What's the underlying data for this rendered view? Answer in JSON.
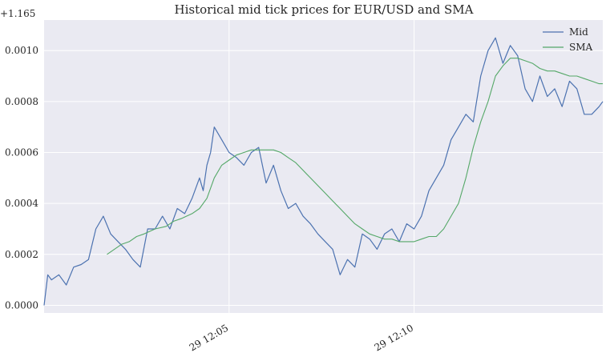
{
  "chart_data": {
    "type": "line",
    "title": "Historical mid tick prices for EUR/USD and SMA",
    "xlabel": "",
    "ylabel": "",
    "y_offset_label": "+1.165",
    "y_offset": 1.165,
    "ylim": [
      -3e-05,
      0.00112
    ],
    "yticks": [
      0.0,
      0.0002,
      0.0004,
      0.0006,
      0.0008,
      0.001
    ],
    "ytick_labels": [
      "0.0000",
      "0.0002",
      "0.0004",
      "0.0006",
      "0.0008",
      "0.0010"
    ],
    "xlim_minutes": [
      0.0,
      15.1
    ],
    "xticks_minutes": [
      5.0,
      10.0
    ],
    "xtick_labels": [
      "29 12:05",
      "29 12:10"
    ],
    "grid": true,
    "legend_position": "top-right",
    "colors": {
      "Mid": "#4c72b0",
      "SMA": "#55a868",
      "plot_background": "#eaeaf2",
      "grid": "#ffffff"
    },
    "series": [
      {
        "name": "Mid",
        "x_minutes": [
          0.0,
          0.1,
          0.2,
          0.4,
          0.6,
          0.8,
          1.0,
          1.2,
          1.4,
          1.6,
          1.8,
          2.0,
          2.2,
          2.4,
          2.6,
          2.8,
          3.0,
          3.2,
          3.4,
          3.6,
          3.8,
          4.0,
          4.2,
          4.3,
          4.4,
          4.5,
          4.6,
          4.8,
          5.0,
          5.2,
          5.4,
          5.6,
          5.8,
          6.0,
          6.2,
          6.4,
          6.6,
          6.8,
          7.0,
          7.2,
          7.4,
          7.6,
          7.8,
          8.0,
          8.2,
          8.4,
          8.6,
          8.8,
          9.0,
          9.2,
          9.4,
          9.6,
          9.8,
          10.0,
          10.2,
          10.4,
          10.6,
          10.8,
          11.0,
          11.2,
          11.4,
          11.6,
          11.8,
          12.0,
          12.2,
          12.4,
          12.6,
          12.8,
          13.0,
          13.2,
          13.4,
          13.6,
          13.8,
          14.0,
          14.2,
          14.4,
          14.6,
          14.8,
          15.0,
          15.1
        ],
        "values": [
          0.0,
          0.00012,
          0.0001,
          0.00012,
          8e-05,
          0.00015,
          0.00016,
          0.00018,
          0.0003,
          0.00035,
          0.00028,
          0.00025,
          0.00022,
          0.00018,
          0.00015,
          0.0003,
          0.0003,
          0.00035,
          0.0003,
          0.00038,
          0.00036,
          0.00042,
          0.0005,
          0.00045,
          0.00055,
          0.0006,
          0.0007,
          0.00065,
          0.0006,
          0.00058,
          0.00055,
          0.0006,
          0.00062,
          0.00048,
          0.00055,
          0.00045,
          0.00038,
          0.0004,
          0.00035,
          0.00032,
          0.00028,
          0.00025,
          0.00022,
          0.00012,
          0.00018,
          0.00015,
          0.00028,
          0.00026,
          0.00022,
          0.00028,
          0.0003,
          0.00025,
          0.00032,
          0.0003,
          0.00035,
          0.00045,
          0.0005,
          0.00055,
          0.00065,
          0.0007,
          0.00075,
          0.00072,
          0.0009,
          0.001,
          0.00105,
          0.00095,
          0.00102,
          0.00098,
          0.00085,
          0.0008,
          0.0009,
          0.00082,
          0.00085,
          0.00078,
          0.00088,
          0.00085,
          0.00075,
          0.00075,
          0.00078,
          0.0008
        ]
      },
      {
        "name": "SMA",
        "x_minutes": [
          1.7,
          1.9,
          2.1,
          2.3,
          2.5,
          2.7,
          3.0,
          3.3,
          3.5,
          3.7,
          4.0,
          4.2,
          4.4,
          4.6,
          4.8,
          5.0,
          5.2,
          5.4,
          5.6,
          5.8,
          6.0,
          6.2,
          6.4,
          6.6,
          6.8,
          7.0,
          7.2,
          7.4,
          7.6,
          7.8,
          8.0,
          8.2,
          8.4,
          8.6,
          8.8,
          9.0,
          9.2,
          9.4,
          9.6,
          9.8,
          10.0,
          10.2,
          10.4,
          10.6,
          10.8,
          11.0,
          11.2,
          11.4,
          11.6,
          11.8,
          12.0,
          12.2,
          12.4,
          12.6,
          12.8,
          13.0,
          13.2,
          13.4,
          13.6,
          13.8,
          14.0,
          14.2,
          14.4,
          14.6,
          14.8,
          15.0,
          15.1
        ],
        "values": [
          0.0002,
          0.00022,
          0.00024,
          0.00025,
          0.00027,
          0.00028,
          0.0003,
          0.00031,
          0.00033,
          0.00034,
          0.00036,
          0.00038,
          0.00042,
          0.0005,
          0.00055,
          0.00057,
          0.00059,
          0.0006,
          0.00061,
          0.00061,
          0.00061,
          0.00061,
          0.0006,
          0.00058,
          0.00056,
          0.00053,
          0.0005,
          0.00047,
          0.00044,
          0.00041,
          0.00038,
          0.00035,
          0.00032,
          0.0003,
          0.00028,
          0.00027,
          0.00026,
          0.00026,
          0.00025,
          0.00025,
          0.00025,
          0.00026,
          0.00027,
          0.00027,
          0.0003,
          0.00035,
          0.0004,
          0.0005,
          0.00062,
          0.00072,
          0.0008,
          0.0009,
          0.00094,
          0.00097,
          0.00097,
          0.00096,
          0.00095,
          0.00093,
          0.00092,
          0.00092,
          0.00091,
          0.0009,
          0.0009,
          0.00089,
          0.00088,
          0.00087,
          0.00087
        ]
      }
    ]
  }
}
